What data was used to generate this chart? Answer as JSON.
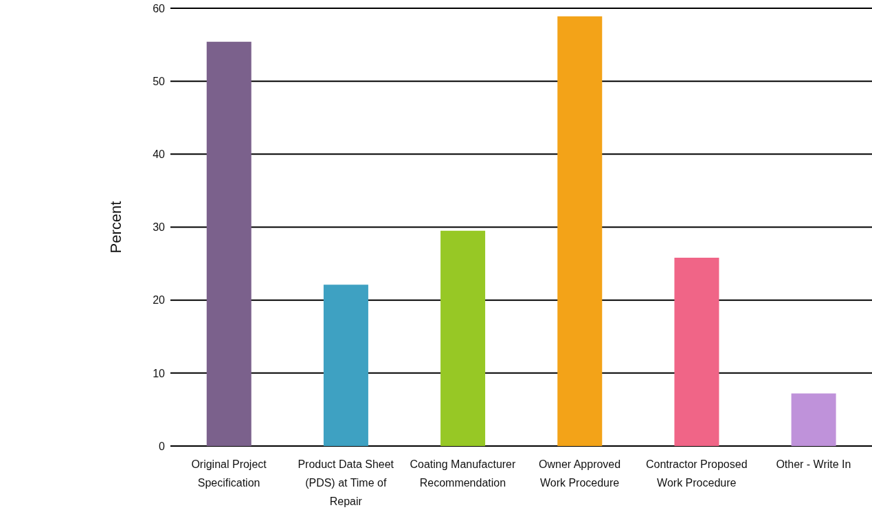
{
  "chart_data": {
    "type": "bar",
    "ylabel": "Percent",
    "categories": [
      "Original Project Specification",
      "Product Data Sheet (PDS) at Time of Repair",
      "Coating Manufacturer Recommendation",
      "Owner Approved Work Procedure",
      "Contractor Proposed Work Procedure",
      "Other - Write In"
    ],
    "values": [
      55.4,
      22.1,
      29.5,
      58.9,
      25.8,
      7.2
    ],
    "colors": [
      "#7b618c",
      "#3ea1c2",
      "#97c825",
      "#f3a318",
      "#f06587",
      "#bf92da"
    ],
    "ylim": [
      0,
      60
    ],
    "yticks": [
      0,
      10,
      20,
      30,
      40,
      50,
      60
    ],
    "grid": "y"
  }
}
